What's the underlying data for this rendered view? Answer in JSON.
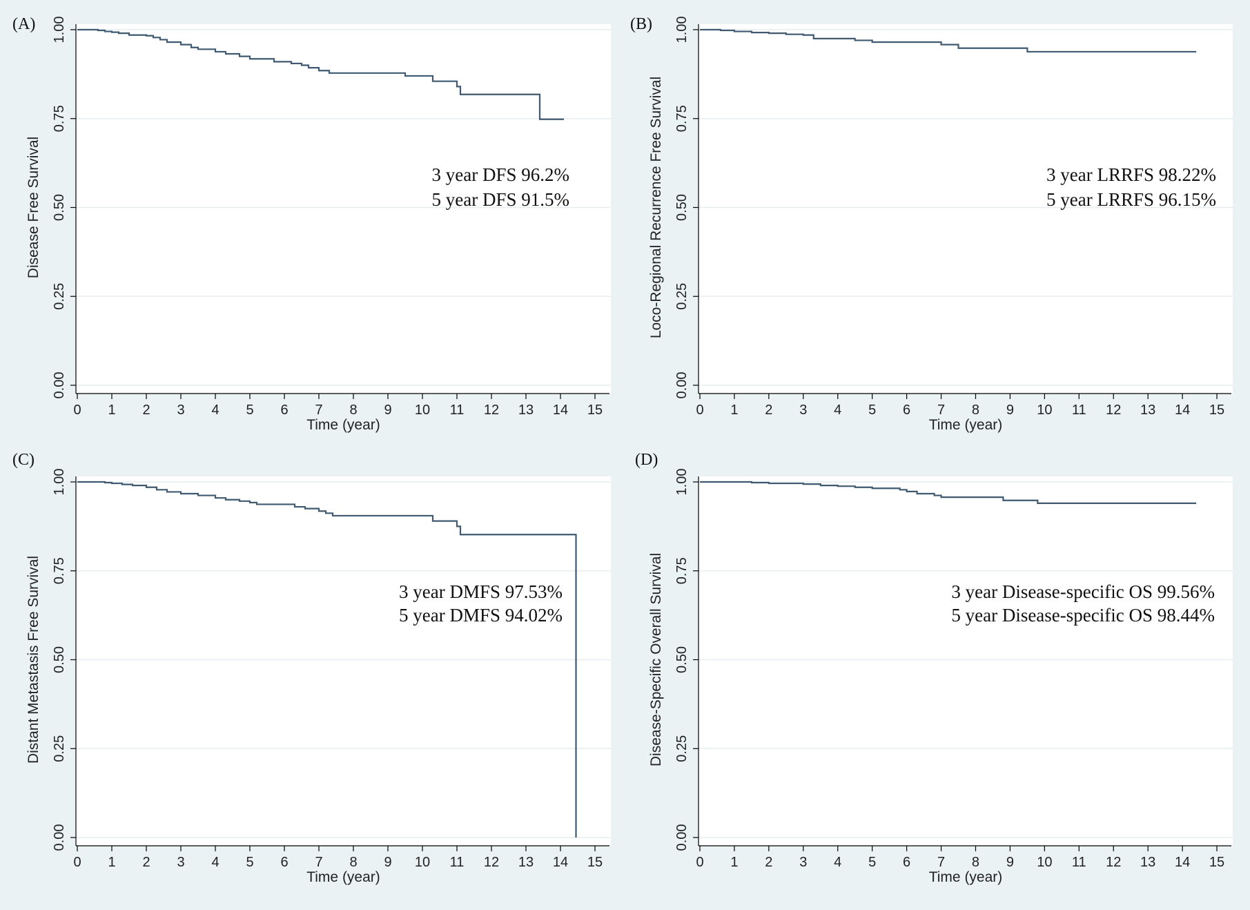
{
  "figure": {
    "background": "#eaf2f3",
    "line_color": "#3f5a70"
  },
  "chart_data": [
    {
      "id": "A",
      "panel_label": "(A)",
      "type": "line",
      "step": true,
      "xlabel": "Time (year)",
      "ylabel": "Disease Free Survival",
      "xlim": [
        0,
        15
      ],
      "ylim": [
        0,
        1
      ],
      "xticks": [
        "0",
        "1",
        "2",
        "3",
        "4",
        "5",
        "6",
        "7",
        "8",
        "9",
        "10",
        "11",
        "12",
        "13",
        "14",
        "15"
      ],
      "yticks": [
        "0.00",
        "0.25",
        "0.50",
        "0.75",
        "1.00"
      ],
      "grid": true,
      "annotations": [
        "3 year DFS 96.2%",
        "5 year DFS 91.5%"
      ],
      "series": [
        {
          "name": "DFS",
          "x": [
            0,
            0.6,
            0.8,
            1.0,
            1.2,
            1.5,
            2.0,
            2.2,
            2.4,
            2.6,
            3.0,
            3.3,
            3.5,
            4.0,
            4.3,
            4.7,
            5.0,
            5.7,
            6.2,
            6.5,
            6.7,
            7.0,
            7.3,
            9.5,
            10.3,
            11.0,
            11.1,
            13.4,
            14.1
          ],
          "values": [
            1.0,
            0.998,
            0.995,
            0.993,
            0.99,
            0.985,
            0.983,
            0.978,
            0.972,
            0.965,
            0.958,
            0.95,
            0.945,
            0.938,
            0.932,
            0.925,
            0.918,
            0.91,
            0.905,
            0.9,
            0.893,
            0.885,
            0.878,
            0.87,
            0.855,
            0.84,
            0.818,
            0.748,
            0.748
          ]
        }
      ]
    },
    {
      "id": "B",
      "panel_label": "(B)",
      "type": "line",
      "step": true,
      "xlabel": "Time (year)",
      "ylabel": "Loco-Regional Recurrence Free Survival",
      "xlim": [
        0,
        15
      ],
      "ylim": [
        0,
        1
      ],
      "xticks": [
        "0",
        "1",
        "2",
        "3",
        "4",
        "5",
        "6",
        "7",
        "8",
        "9",
        "10",
        "11",
        "12",
        "13",
        "14",
        "15"
      ],
      "yticks": [
        "0.00",
        "0.25",
        "0.50",
        "0.75",
        "1.00"
      ],
      "grid": true,
      "annotations": [
        "3 year LRRFS 98.22%",
        "5 year LRRFS 96.15%"
      ],
      "series": [
        {
          "name": "LRRFS",
          "x": [
            0,
            0.6,
            1.0,
            1.5,
            2.0,
            2.5,
            3.0,
            3.3,
            4.5,
            5.0,
            7.0,
            7.5,
            9.5,
            14.4
          ],
          "values": [
            1.0,
            0.998,
            0.995,
            0.992,
            0.99,
            0.987,
            0.985,
            0.975,
            0.97,
            0.965,
            0.958,
            0.948,
            0.938,
            0.938
          ]
        }
      ]
    },
    {
      "id": "C",
      "panel_label": "(C)",
      "type": "line",
      "step": true,
      "xlabel": "Time (year)",
      "ylabel": "Distant Metastasis Free Survival",
      "xlim": [
        0,
        15
      ],
      "ylim": [
        0,
        1
      ],
      "xticks": [
        "0",
        "1",
        "2",
        "3",
        "4",
        "5",
        "6",
        "7",
        "8",
        "9",
        "10",
        "11",
        "12",
        "13",
        "14",
        "15"
      ],
      "yticks": [
        "0.00",
        "0.25",
        "0.50",
        "0.75",
        "1.00"
      ],
      "grid": true,
      "annotations": [
        "3 year DMFS 97.53%",
        "5 year DMFS 94.02%"
      ],
      "series": [
        {
          "name": "DMFS",
          "x": [
            0,
            0.8,
            1.0,
            1.3,
            1.6,
            2.0,
            2.3,
            2.6,
            3.0,
            3.5,
            4.0,
            4.3,
            4.7,
            5.0,
            5.2,
            6.3,
            6.6,
            7.0,
            7.2,
            7.4,
            10.3,
            11.0,
            11.1,
            14.45,
            14.45
          ],
          "values": [
            1.0,
            0.998,
            0.996,
            0.993,
            0.99,
            0.985,
            0.978,
            0.972,
            0.967,
            0.962,
            0.955,
            0.95,
            0.946,
            0.942,
            0.937,
            0.93,
            0.925,
            0.918,
            0.912,
            0.905,
            0.89,
            0.875,
            0.852,
            0.852,
            0.0
          ]
        }
      ]
    },
    {
      "id": "D",
      "panel_label": "(D)",
      "type": "line",
      "step": true,
      "xlabel": "Time (year)",
      "ylabel": "Disease-Specific Overall Survival",
      "xlim": [
        0,
        15
      ],
      "ylim": [
        0,
        1
      ],
      "xticks": [
        "0",
        "1",
        "2",
        "3",
        "4",
        "5",
        "6",
        "7",
        "8",
        "9",
        "10",
        "11",
        "12",
        "13",
        "14",
        "15"
      ],
      "yticks": [
        "0.00",
        "0.25",
        "0.50",
        "0.75",
        "1.00"
      ],
      "grid": true,
      "annotations": [
        "3 year Disease-specific OS 99.56%",
        "5 year Disease-specific OS 98.44%"
      ],
      "series": [
        {
          "name": "DSOS",
          "x": [
            0,
            1.5,
            2.0,
            3.0,
            3.5,
            4.0,
            4.5,
            5.0,
            5.8,
            6.0,
            6.3,
            6.8,
            7.0,
            8.8,
            9.8,
            14.4
          ],
          "values": [
            1.0,
            0.998,
            0.996,
            0.994,
            0.99,
            0.988,
            0.985,
            0.982,
            0.978,
            0.973,
            0.967,
            0.962,
            0.957,
            0.948,
            0.94,
            0.94
          ]
        }
      ]
    }
  ]
}
